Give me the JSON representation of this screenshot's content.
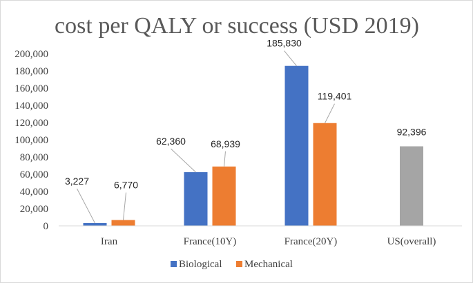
{
  "chart_data": {
    "type": "bar",
    "title": "cost per QALY or success (USD 2019)",
    "categories": [
      "Iran",
      "France(10Y)",
      "France(20Y)",
      "US(overall)"
    ],
    "series": [
      {
        "name": "Biological",
        "color": "#4472c4",
        "values": [
          3227,
          62360,
          185830,
          null
        ]
      },
      {
        "name": "Mechanical",
        "color": "#ed7d31",
        "values": [
          6770,
          68939,
          119401,
          null
        ]
      },
      {
        "name": "",
        "color": "#a5a5a5",
        "values": [
          null,
          null,
          null,
          92396
        ]
      }
    ],
    "data_labels": {
      "Biological": [
        "3,227",
        "62,360",
        "185,830",
        ""
      ],
      "Mechanical": [
        "6,770",
        "68,939",
        "119,401",
        ""
      ],
      "overall": [
        "",
        "",
        "",
        "92,396"
      ]
    },
    "yticks": [
      "0",
      "20,000",
      "40,000",
      "60,000",
      "80,000",
      "100,000",
      "120,000",
      "140,000",
      "160,000",
      "180,000",
      "200,000"
    ],
    "ylim": [
      0,
      200000
    ],
    "legend": {
      "position": "bottom",
      "entries": [
        "Biological",
        "Mechanical"
      ]
    },
    "grid": false
  }
}
